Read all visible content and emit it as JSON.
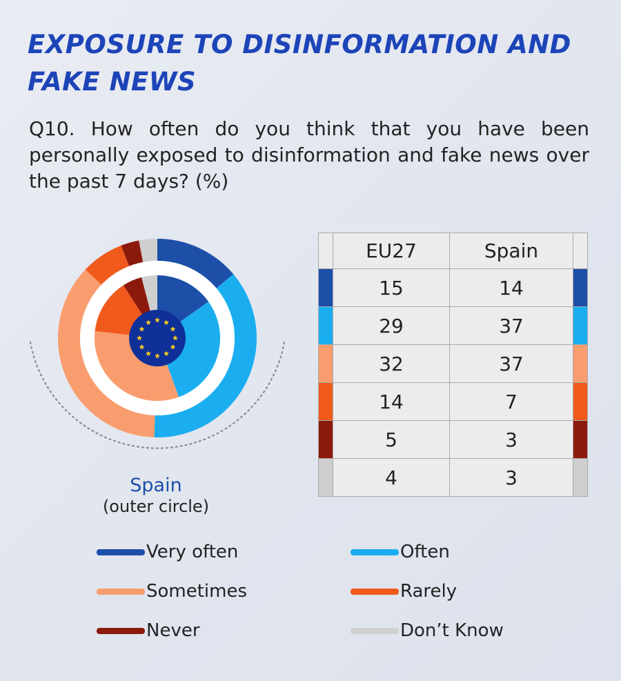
{
  "header": {
    "title": "EXPOSURE TO DISINFORMATION AND FAKE NEWS",
    "question": "Q10. How often do you think that you have been personally exposed to disinformation and fake news over the past 7 days? (%)"
  },
  "donut": {
    "caption_name": "Spain",
    "caption_sub": "(outer circle)"
  },
  "chart_data": {
    "type": "pie",
    "title": "EXPOSURE TO DISINFORMATION AND FAKE NEWS",
    "categories": [
      "Very often",
      "Often",
      "Sometimes",
      "Rarely",
      "Never",
      "Don’t Know"
    ],
    "colors": [
      "#1d4fa8",
      "#1aaef0",
      "#f99d6e",
      "#f05a1c",
      "#8c1a0c",
      "#cfcfcf"
    ],
    "series": [
      {
        "name": "EU27",
        "values": [
          15,
          29,
          32,
          14,
          5,
          4
        ]
      },
      {
        "name": "Spain",
        "values": [
          14,
          37,
          37,
          7,
          3,
          3
        ]
      }
    ]
  },
  "table": {
    "headers": [
      "EU27",
      "Spain"
    ]
  }
}
